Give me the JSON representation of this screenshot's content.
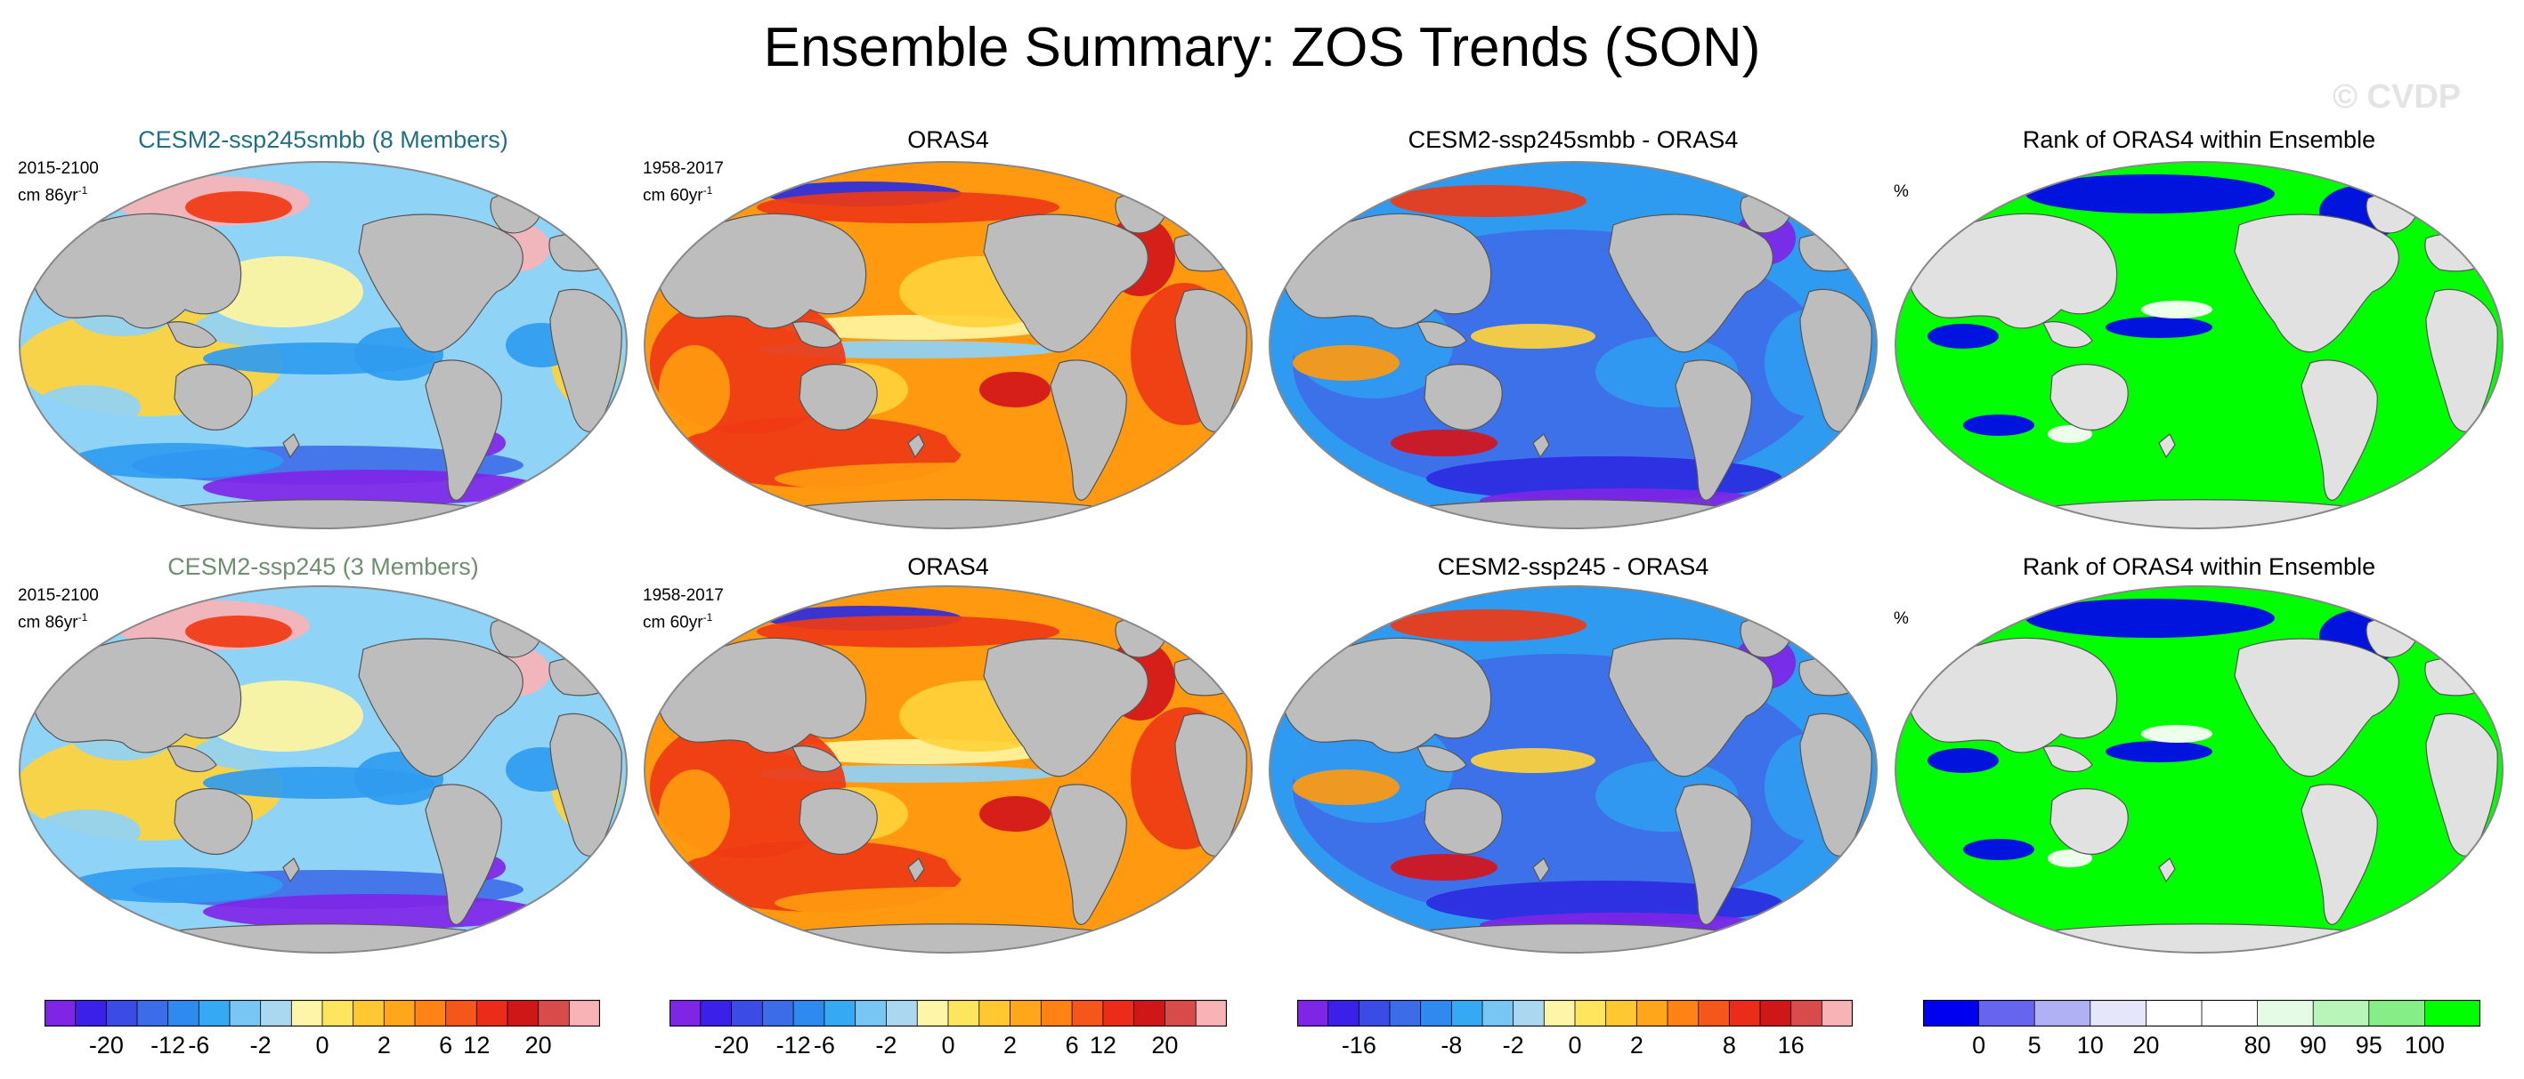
{
  "title": "Ensemble Summary: ZOS Trends (SON)",
  "watermark": "© CVDP",
  "colors": {
    "land": "#bdbdbd",
    "land_light": "#e1e1e1",
    "ocean_border": "#888888",
    "purple": "#7f25e6",
    "blue_deep": "#2b2be0",
    "blue": "#3f6ee8",
    "blue_light": "#2f9bf0",
    "cyan": "#8fd3f7",
    "pale": "#fff5a0",
    "yellow": "#ffd23a",
    "orange": "#ff9a10",
    "red": "#ef3a15",
    "darkred": "#d4151a",
    "pink": "#f8b3b6",
    "green": "#00ff00",
    "rank_blue": "#0000f0"
  },
  "rows": [
    {
      "panels": [
        {
          "title": "CESM2-ssp245smbb (8 Members)",
          "title_color": "#1f6f8b",
          "period": "2015-2100",
          "units_prefix": "cm 86yr",
          "units_exp": "-1",
          "kind": "model"
        },
        {
          "title": "ORAS4",
          "title_color": "#000000",
          "period": "1958-2017",
          "units_prefix": "cm 60yr",
          "units_exp": "-1",
          "kind": "obs"
        },
        {
          "title": "CESM2-ssp245smbb - ORAS4",
          "title_color": "#000000",
          "period": "",
          "units_prefix": "",
          "units_exp": "",
          "kind": "diff"
        },
        {
          "title": "Rank of ORAS4 within Ensemble",
          "title_color": "#000000",
          "period": "",
          "units_prefix": "%",
          "units_exp": "",
          "kind": "rank"
        }
      ]
    },
    {
      "panels": [
        {
          "title": "CESM2-ssp245 (3 Members)",
          "title_color": "#6e8f6e",
          "period": "2015-2100",
          "units_prefix": "cm 86yr",
          "units_exp": "-1",
          "kind": "model"
        },
        {
          "title": "ORAS4",
          "title_color": "#000000",
          "period": "1958-2017",
          "units_prefix": "cm 60yr",
          "units_exp": "-1",
          "kind": "obs"
        },
        {
          "title": "CESM2-ssp245 - ORAS4",
          "title_color": "#000000",
          "period": "",
          "units_prefix": "",
          "units_exp": "",
          "kind": "diff"
        },
        {
          "title": "Rank of ORAS4 within Ensemble",
          "title_color": "#000000",
          "period": "",
          "units_prefix": "%",
          "units_exp": "",
          "kind": "rank"
        }
      ]
    }
  ],
  "colorbars": [
    {
      "name": "trend",
      "colors": [
        "#7f25e6",
        "#3a20e8",
        "#3b4ce6",
        "#3d6ce8",
        "#2f8af0",
        "#36a9f5",
        "#78c6f3",
        "#a9d8f0",
        "#fff5a8",
        "#ffe45e",
        "#ffc830",
        "#ffa61a",
        "#ff8214",
        "#f5561a",
        "#ea2c18",
        "#cf1717",
        "#d94b4b",
        "#f8b3b6"
      ],
      "ticks": [
        "-20",
        "-12",
        "-6",
        "-2",
        "0",
        "2",
        "6",
        "12",
        "20"
      ]
    },
    {
      "name": "trend-obs",
      "colors": [
        "#7f25e6",
        "#3a20e8",
        "#3b4ce6",
        "#3d6ce8",
        "#2f8af0",
        "#36a9f5",
        "#78c6f3",
        "#a9d8f0",
        "#fff5a8",
        "#ffe45e",
        "#ffc830",
        "#ffa61a",
        "#ff8214",
        "#f5561a",
        "#ea2c18",
        "#cf1717",
        "#d94b4b",
        "#f8b3b6"
      ],
      "ticks": [
        "-20",
        "-12",
        "-6",
        "-2",
        "0",
        "2",
        "6",
        "12",
        "20"
      ]
    },
    {
      "name": "diff",
      "colors": [
        "#7f25e6",
        "#3a20e8",
        "#3b4ce6",
        "#3d6ce8",
        "#2f8af0",
        "#36a9f5",
        "#78c6f3",
        "#a9d8f0",
        "#fff5a8",
        "#ffe45e",
        "#ffc830",
        "#ffa61a",
        "#ff8214",
        "#f5561a",
        "#ea2c18",
        "#cf1717",
        "#d94b4b",
        "#f8b3b6"
      ],
      "ticks": [
        "-16",
        "-8",
        "-2",
        "0",
        "2",
        "8",
        "16"
      ]
    },
    {
      "name": "rank",
      "colors": [
        "#0000f0",
        "#6565f0",
        "#b0b0f5",
        "#e6e6fb",
        "#ffffff",
        "#ffffff",
        "#e6fbe6",
        "#b8f5b8",
        "#86ee86",
        "#00ff00"
      ],
      "ticks": [
        "0",
        "5",
        "10",
        "20",
        "80",
        "90",
        "95",
        "100"
      ]
    }
  ]
}
